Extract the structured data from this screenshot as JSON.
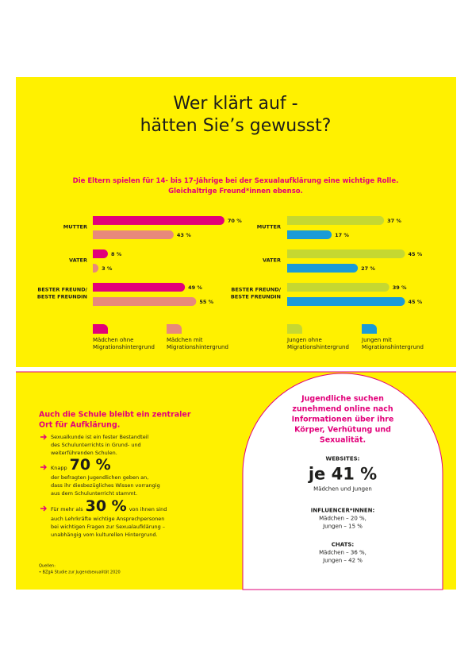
{
  "header": {
    "title": [
      "Wer klärt auf -",
      "hätten Sie’s gewusst?"
    ],
    "subtitle": [
      "Die Eltern spielen für 14- bis 17-Jährige bei der Sexualaufklärung eine wichtige Rolle.",
      "Gleichaltrige Freund*innen ebenso."
    ]
  },
  "charts": [
    {
      "type": "bar",
      "categories": [
        "MUTTER",
        "VATER",
        "BESTER FREUND/ BESTE FREUNDIN"
      ],
      "series": [
        {
          "name": "Mädchen ohne Migrationshintergrund",
          "color": "#e2007a",
          "values": [
            70,
            8,
            49
          ],
          "value_labels": [
            "70 %",
            "8 %",
            "49 %"
          ]
        },
        {
          "name": "Mädchen mit Migrationshintergrund",
          "color": "#e8897b",
          "values": [
            43,
            3,
            55
          ],
          "value_labels": [
            "43 %",
            "3 %",
            "55 %"
          ]
        }
      ]
    },
    {
      "type": "bar",
      "categories": [
        "MUTTER",
        "VATER",
        "BESTER FREUND/ BESTE FREUNDIN"
      ],
      "series": [
        {
          "name": "Jungen ohne Migrationshintergrund",
          "color": "#c5d831",
          "values": [
            37,
            45,
            39
          ],
          "value_labels": [
            "37 %",
            "45 %",
            "39 %"
          ]
        },
        {
          "name": "Jungen mit Migrationshintergrund",
          "color": "#1a9bd7",
          "values": [
            17,
            27,
            45
          ],
          "value_labels": [
            "17 %",
            "27 %",
            "45 %"
          ]
        }
      ]
    }
  ],
  "section_school": {
    "heading": [
      "Auch die Schule bleibt ein zentraler",
      "Ort für Aufklärung."
    ],
    "bullets": [
      {
        "lines": [
          "Sexualkunde ist ein fester Bestandteil",
          "des Schulunterrichts in Grund- und",
          "weiterführenden Schulen."
        ]
      },
      {
        "lead": "Knapp",
        "highlight": "70 %",
        "lines": [
          "der befragten Jugendlichen geben an,",
          "dass ihr diesbezügliches Wissen vorrangig",
          "aus dem Schulunterricht stammt."
        ]
      },
      {
        "lead": "Für mehr als",
        "highlight": "30 %",
        "tail": "von ihnen sind",
        "lines": [
          "auch Lehrkräfte wichtige Ansprechpersonen",
          "bei wichtigen Fragen zur Sexualaufklärung –",
          "unabhängig vom kulturellen Hintergrund."
        ]
      }
    ],
    "sources": [
      "Quellen:",
      "• BZgA Studie zur Jugendsexualität 2020"
    ]
  },
  "section_online": {
    "heading": [
      "Jugendliche suchen",
      "zunehmend online nach",
      "Informationen über ihre",
      "Körper, Verhütung und",
      "Sexualität."
    ],
    "blocks": [
      {
        "label": "WEBSITES:",
        "highlight": "je 41 %",
        "lines": [
          "Mädchen und Jungen"
        ]
      },
      {
        "label": "INFLUENCER*INNEN:",
        "lines": [
          "Mädchen – 20 %,",
          "Jungen – 15 %"
        ]
      },
      {
        "label": "CHATS:",
        "lines": [
          "Mädchen – 36 %,",
          "Jungen – 42 %"
        ]
      }
    ]
  }
}
